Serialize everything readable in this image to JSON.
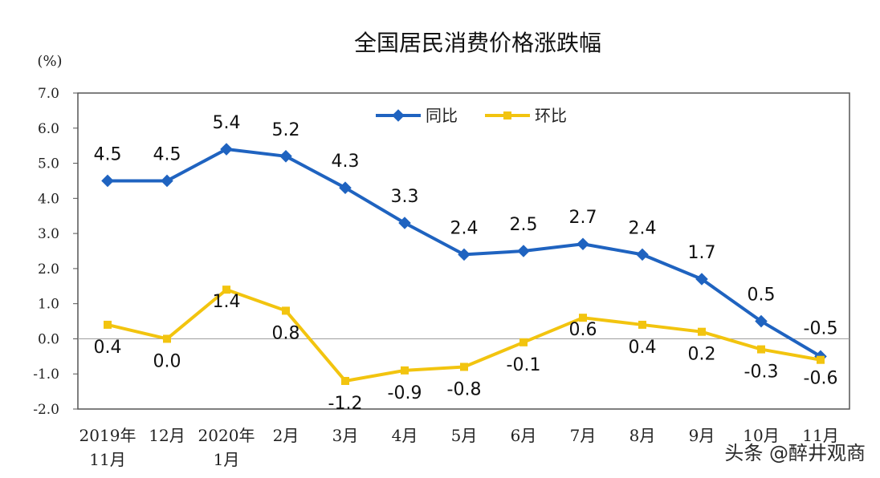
{
  "chart_data": {
    "type": "line",
    "title": "全国居民消费价格涨跌幅",
    "unit_label": "(%)",
    "ylim": [
      -2.0,
      7.0
    ],
    "yticks": [
      "7.0",
      "6.0",
      "5.0",
      "4.0",
      "3.0",
      "2.0",
      "1.0",
      "0.0",
      "-1.0",
      "-2.0"
    ],
    "categories": [
      [
        "2019年",
        "11月"
      ],
      [
        "12月"
      ],
      [
        "2020年",
        "1月"
      ],
      [
        "2月"
      ],
      [
        "3月"
      ],
      [
        "4月"
      ],
      [
        "5月"
      ],
      [
        "6月"
      ],
      [
        "7月"
      ],
      [
        "8月"
      ],
      [
        "9月"
      ],
      [
        "10月"
      ],
      [
        "11月"
      ]
    ],
    "series": [
      {
        "name": "同比",
        "color": "#1f63c0",
        "values": [
          4.5,
          4.5,
          5.4,
          5.2,
          4.3,
          3.3,
          2.4,
          2.5,
          2.7,
          2.4,
          1.7,
          0.5,
          -0.5
        ],
        "labels": [
          "4.5",
          "4.5",
          "5.4",
          "5.2",
          "4.3",
          "3.3",
          "2.4",
          "2.5",
          "2.7",
          "2.4",
          "1.7",
          "0.5",
          "-0.5"
        ]
      },
      {
        "name": "环比",
        "color": "#f2c40f",
        "values": [
          0.4,
          0.0,
          1.4,
          0.8,
          -1.2,
          -0.9,
          -0.8,
          -0.1,
          0.6,
          0.4,
          0.2,
          -0.3,
          -0.6
        ],
        "labels": [
          "0.4",
          "0.0",
          "1.4",
          "0.8",
          "-1.2",
          "-0.9",
          "-0.8",
          "-0.1",
          "0.6",
          "0.4",
          "0.2",
          "-0.3",
          "-0.6"
        ]
      }
    ],
    "legend_position": "top-center",
    "grid": false
  },
  "watermark": "头条 @醉井观商"
}
